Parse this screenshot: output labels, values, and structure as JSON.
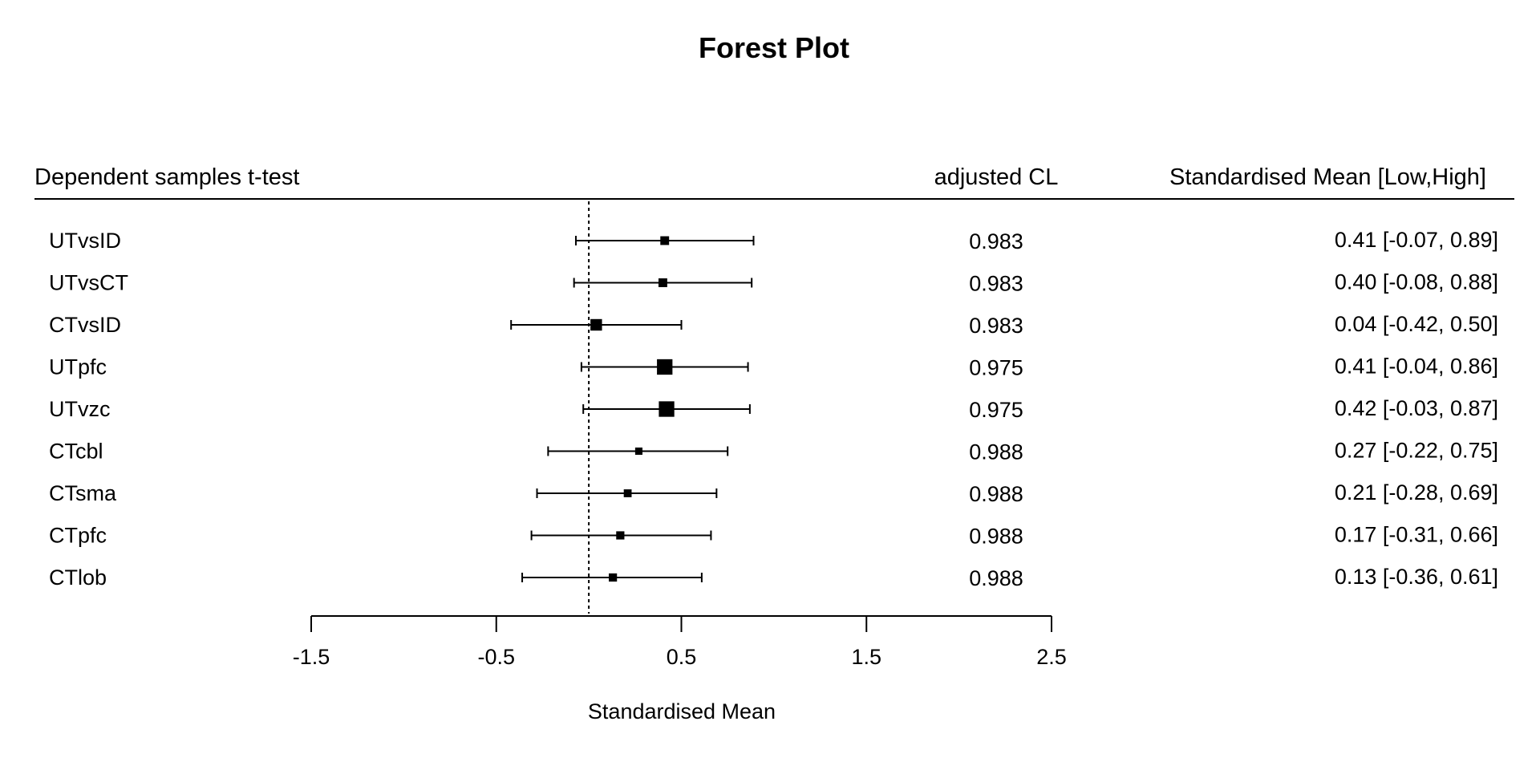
{
  "chart_data": {
    "type": "forest",
    "title": "Forest Plot",
    "column_headers": {
      "study": "Dependent samples t-test",
      "adjusted_cl": "adjusted CL",
      "estimate": "Standardised Mean [Low,High]"
    },
    "xlabel": "Standardised Mean",
    "xlim": [
      -1.5,
      2.5
    ],
    "x_ticks": [
      -1.5,
      -0.5,
      0.5,
      1.5,
      2.5
    ],
    "x_tick_labels": [
      "-1.5",
      "-0.5",
      "0.5",
      "1.5",
      "2.5"
    ],
    "reference_line": 0,
    "rows": [
      {
        "label": "UTvsID",
        "mean": 0.41,
        "low": -0.07,
        "high": 0.89,
        "adjusted_cl": "0.983",
        "estimate_text": "0.41 [-0.07, 0.89]",
        "marker_weight": 0.35
      },
      {
        "label": "UTvsCT",
        "mean": 0.4,
        "low": -0.08,
        "high": 0.88,
        "adjusted_cl": "0.983",
        "estimate_text": "0.40 [-0.08, 0.88]",
        "marker_weight": 0.35
      },
      {
        "label": "CTvsID",
        "mean": 0.04,
        "low": -0.42,
        "high": 0.5,
        "adjusted_cl": "0.983",
        "estimate_text": "0.04 [-0.42, 0.50]",
        "marker_weight": 0.6
      },
      {
        "label": "UTpfc",
        "mean": 0.41,
        "low": -0.04,
        "high": 0.86,
        "adjusted_cl": "0.975",
        "estimate_text": "0.41 [-0.04, 0.86]",
        "marker_weight": 0.95
      },
      {
        "label": "UTvzc",
        "mean": 0.42,
        "low": -0.03,
        "high": 0.87,
        "adjusted_cl": "0.975",
        "estimate_text": "0.42 [-0.03, 0.87]",
        "marker_weight": 0.95
      },
      {
        "label": "CTcbl",
        "mean": 0.27,
        "low": -0.22,
        "high": 0.75,
        "adjusted_cl": "0.988",
        "estimate_text": "0.27 [-0.22, 0.75]",
        "marker_weight": 0.22
      },
      {
        "label": "CTsma",
        "mean": 0.21,
        "low": -0.28,
        "high": 0.69,
        "adjusted_cl": "0.988",
        "estimate_text": "0.21 [-0.28, 0.69]",
        "marker_weight": 0.27
      },
      {
        "label": "CTpfc",
        "mean": 0.17,
        "low": -0.31,
        "high": 0.66,
        "adjusted_cl": "0.988",
        "estimate_text": "0.17 [-0.31, 0.66]",
        "marker_weight": 0.3
      },
      {
        "label": "CTlob",
        "mean": 0.13,
        "low": -0.36,
        "high": 0.61,
        "adjusted_cl": "0.988",
        "estimate_text": "0.13 [-0.36, 0.61]",
        "marker_weight": 0.3
      }
    ],
    "grid": false,
    "legend": "none"
  }
}
